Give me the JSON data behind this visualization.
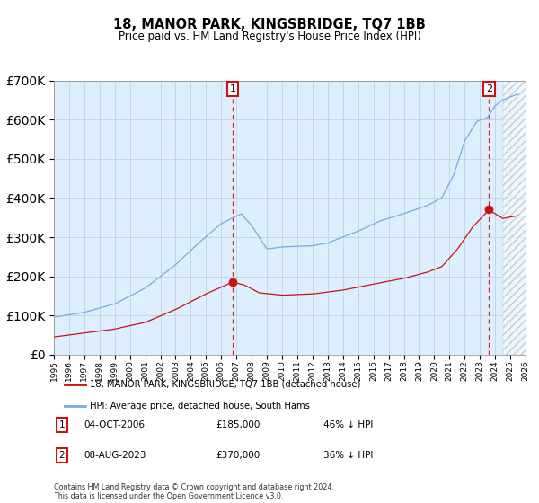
{
  "title": "18, MANOR PARK, KINGSBRIDGE, TQ7 1BB",
  "subtitle": "Price paid vs. HM Land Registry's House Price Index (HPI)",
  "hpi_label": "HPI: Average price, detached house, South Hams",
  "property_label": "18, MANOR PARK, KINGSBRIDGE, TQ7 1BB (detached house)",
  "sale1_date": "04-OCT-2006",
  "sale1_price": 185000,
  "sale1_text": "46% ↓ HPI",
  "sale2_date": "08-AUG-2023",
  "sale2_price": 370000,
  "sale2_text": "36% ↓ HPI",
  "sale1_year": 2006.75,
  "sale2_year": 2023.6,
  "ylim": [
    0,
    700000
  ],
  "xlim_start": 1995,
  "xlim_end": 2026,
  "hpi_color": "#7aaadd",
  "property_color": "#cc1111",
  "background_color": "#ddeeff",
  "grid_color": "#bbccdd",
  "hatch_start": 2024.5,
  "footer": "Contains HM Land Registry data © Crown copyright and database right 2024.\nThis data is licensed under the Open Government Licence v3.0."
}
